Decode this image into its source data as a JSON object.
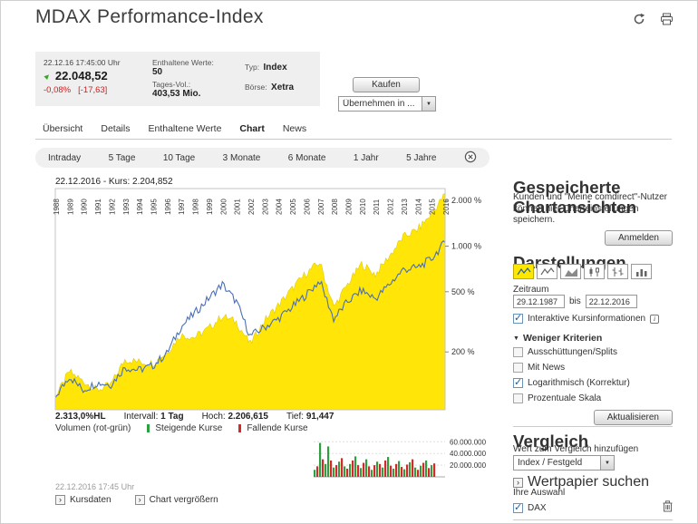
{
  "icons": {
    "chevron_right": "›",
    "dropdown": "▼",
    "trend_up": "▲",
    "triangle_down": "▼",
    "info": "i"
  },
  "header": {
    "title": "MDAX Performance-Index"
  },
  "quote": {
    "timestamp": "22.12.16 17:45:00 Uhr",
    "price": "22.048,52",
    "change": "-0,08%",
    "change_abs": "[-17,63]",
    "contained_label": "Enthaltene Werte:",
    "contained_value": "50",
    "volume_label": "Tages-Vol.:",
    "volume_value": "403,53 Mio.",
    "type_label": "Typ:",
    "type_value": "Index",
    "exchange_label": "Börse:",
    "exchange_value": "Xetra",
    "buy_button": "Kaufen",
    "transfer_select": "Übernehmen in ..."
  },
  "nav_tabs": {
    "items": [
      {
        "label": "Übersicht",
        "active": false
      },
      {
        "label": "Details",
        "active": false
      },
      {
        "label": "Enthaltene Werte",
        "active": false
      },
      {
        "label": "Chart",
        "active": true
      },
      {
        "label": "News",
        "active": false
      }
    ]
  },
  "range_bar": {
    "items": [
      "Intraday",
      "5 Tage",
      "10 Tage",
      "3 Monate",
      "6 Monate",
      "1 Jahr",
      "5 Jahre"
    ]
  },
  "chart": {
    "cursor_label": "22.12.2016 - Kurs: 2.204,852",
    "stats_hl": "2.313,0%HL",
    "stats_interval_label": "Intervall:",
    "stats_interval": "1 Tag",
    "stats_high_label": "Hoch:",
    "stats_high": "2.206,615",
    "stats_low_label": "Tief:",
    "stats_low": "91,447",
    "volume_title": "Volumen (rot-grün)",
    "legend_up": "Steigende Kurse",
    "legend_down": "Fallende Kurse",
    "footer_time": "22.12.2016 17:45 Uhr",
    "link_quotes": "Kursdaten",
    "link_enlarge": "Chart vergrößern"
  },
  "chart_data": {
    "type": "area+line",
    "x_years": [
      1988,
      1989,
      1990,
      1991,
      1992,
      1993,
      1994,
      1995,
      1996,
      1997,
      1998,
      1999,
      2000,
      2001,
      2002,
      2003,
      2004,
      2005,
      2006,
      2007,
      2008,
      2009,
      2010,
      2011,
      2012,
      2013,
      2014,
      2015,
      2016
    ],
    "y_axis": {
      "scale": "log",
      "unit": "%",
      "ticks": [
        2000,
        1000,
        500,
        200
      ],
      "tick_labels": [
        "2.000 %",
        "1.000 %",
        "500 %",
        "200 %"
      ],
      "range_min": 83,
      "range_max": 2400
    },
    "series": [
      {
        "name": "MDAX",
        "type": "area",
        "color": "#ffe608",
        "values": [
          100,
          148,
          128,
          112,
          122,
          178,
          172,
          168,
          198,
          258,
          250,
          285,
          345,
          315,
          225,
          320,
          405,
          520,
          660,
          780,
          395,
          560,
          760,
          650,
          860,
          1150,
          1280,
          1620,
          2200
        ]
      },
      {
        "name": "DAX",
        "type": "line",
        "color": "#4a6fb5",
        "values": [
          100,
          138,
          112,
          125,
          122,
          158,
          152,
          162,
          195,
          290,
          360,
          450,
          560,
          430,
          255,
          290,
          330,
          395,
          475,
          590,
          330,
          430,
          510,
          450,
          560,
          700,
          720,
          820,
          1060
        ]
      }
    ],
    "volume": {
      "ticks": [
        60000000,
        40000000,
        20000000
      ],
      "tick_labels": [
        "60.000.000",
        "40.000.000",
        "20.000.000"
      ],
      "max": 62000000,
      "up_color": "#2f9e41",
      "down_color": "#d02b2b",
      "bars": [
        [
          12,
          "g"
        ],
        [
          18,
          "r"
        ],
        [
          58,
          "g"
        ],
        [
          30,
          "r"
        ],
        [
          22,
          "g"
        ],
        [
          52,
          "g"
        ],
        [
          28,
          "r"
        ],
        [
          16,
          "g"
        ],
        [
          20,
          "r"
        ],
        [
          26,
          "g"
        ],
        [
          32,
          "r"
        ],
        [
          18,
          "g"
        ],
        [
          14,
          "r"
        ],
        [
          22,
          "g"
        ],
        [
          28,
          "r"
        ],
        [
          35,
          "g"
        ],
        [
          20,
          "r"
        ],
        [
          15,
          "g"
        ],
        [
          24,
          "r"
        ],
        [
          30,
          "g"
        ],
        [
          18,
          "r"
        ],
        [
          12,
          "g"
        ],
        [
          20,
          "r"
        ],
        [
          26,
          "g"
        ],
        [
          22,
          "r"
        ],
        [
          16,
          "g"
        ],
        [
          28,
          "r"
        ],
        [
          34,
          "g"
        ],
        [
          19,
          "r"
        ],
        [
          14,
          "g"
        ],
        [
          22,
          "r"
        ],
        [
          27,
          "g"
        ],
        [
          17,
          "r"
        ],
        [
          13,
          "g"
        ],
        [
          21,
          "r"
        ],
        [
          25,
          "g"
        ],
        [
          30,
          "r"
        ],
        [
          16,
          "g"
        ],
        [
          12,
          "r"
        ],
        [
          19,
          "g"
        ],
        [
          24,
          "r"
        ],
        [
          28,
          "g"
        ],
        [
          15,
          "r"
        ],
        [
          20,
          "g"
        ],
        [
          23,
          "r"
        ]
      ]
    }
  },
  "sidebar": {
    "saved_views_title": "Gespeicherte Chartansichten",
    "saved_views_text": "Kunden und \"Meine comdirect\"-Nutzer können hier Charteinstellungen speichern.",
    "login_button": "Anmelden",
    "display_title": "Darstellungen",
    "period_label": "Zeitraum",
    "period_from": "29.12.1987",
    "period_bis": "bis",
    "period_to": "22.12.2016",
    "interactive_label": "Interaktive Kursinformationen",
    "interactive_checked": true,
    "criteria_toggle": "Weniger Kriterien",
    "criteria": [
      {
        "label": "Ausschüttungen/Splits",
        "checked": false
      },
      {
        "label": "Mit News",
        "checked": false
      },
      {
        "label": "Logarithmisch (Korrektur)",
        "checked": true
      },
      {
        "label": "Prozentuale Skala",
        "checked": false
      }
    ],
    "update_button": "Aktualisieren",
    "compare_title": "Vergleich",
    "compare_text": "Wert zum Vergleich hinzufügen",
    "compare_select": "Index / Festgeld",
    "search_link": "Wertpapier suchen",
    "selection_title": "Ihre Auswahl",
    "selection_item": "DAX",
    "selection_checked": true
  }
}
